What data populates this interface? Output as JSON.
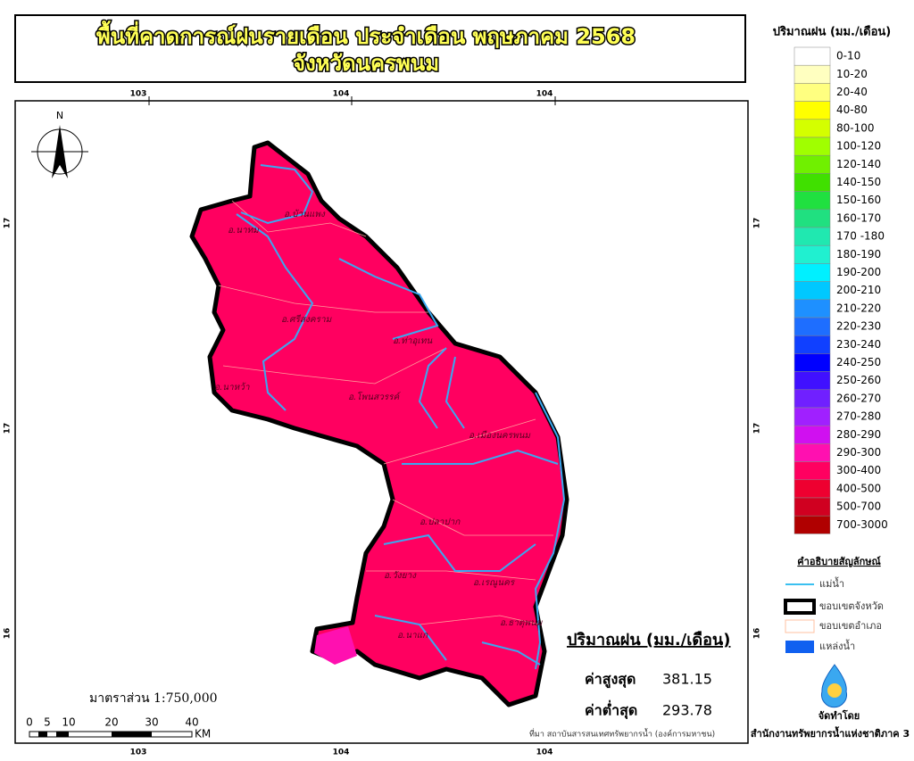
{
  "header": {
    "title_line1": "พื้นที่คาดการณ์ฝนรายเดือน ประจำเดือน พฤษภาคม 2568",
    "title_line2": "จังหวัดนครพนม"
  },
  "map": {
    "north": "N",
    "top_ticks": [
      "103",
      "104",
      "104"
    ],
    "bottom_ticks": [
      "103",
      "104",
      "104"
    ],
    "left_ticks": [
      "17",
      "17",
      "16"
    ],
    "right_ticks": [
      "17",
      "17",
      "16"
    ],
    "districts": [
      "อ.บ้านแพง",
      "อ.นาทม",
      "อ.ศรีสงคราม",
      "อ.ท่าอุเทน",
      "อ.นาหว้า",
      "อ.โพนสวรรค์",
      "อ.เมืองนครพนม",
      "อ.ปลาปาก",
      "อ.วังยาง",
      "อ.เรณูนคร",
      "อ.ธาตุพนม",
      "อ.นาแก"
    ]
  },
  "legend": {
    "title": "ปริมาณฝน (มม./เดือน)",
    "items": [
      {
        "label": "0-10",
        "color": "#ffffff"
      },
      {
        "label": "10-20",
        "color": "#ffffc0"
      },
      {
        "label": "20-40",
        "color": "#ffff80"
      },
      {
        "label": "40-80",
        "color": "#ffff00"
      },
      {
        "label": "80-100",
        "color": "#d4ff00"
      },
      {
        "label": "100-120",
        "color": "#a0ff00"
      },
      {
        "label": "120-140",
        "color": "#70f000"
      },
      {
        "label": "140-150",
        "color": "#40e000"
      },
      {
        "label": "150-160",
        "color": "#20e040"
      },
      {
        "label": "160-170",
        "color": "#20e080"
      },
      {
        "label": "170 -180",
        "color": "#20e8b0"
      },
      {
        "label": "180-190",
        "color": "#20f0d0"
      },
      {
        "label": "190-200",
        "color": "#00f0ff"
      },
      {
        "label": "200-210",
        "color": "#00c8ff"
      },
      {
        "label": "210-220",
        "color": "#1e90ff"
      },
      {
        "label": "220-230",
        "color": "#1e6eff"
      },
      {
        "label": "230-240",
        "color": "#1040ff"
      },
      {
        "label": "240-250",
        "color": "#0000ff"
      },
      {
        "label": "250-260",
        "color": "#4010ff"
      },
      {
        "label": "260-270",
        "color": "#7020ff"
      },
      {
        "label": "270-280",
        "color": "#a020ff"
      },
      {
        "label": "280-290",
        "color": "#d010f0"
      },
      {
        "label": "290-300",
        "color": "#ff10b0"
      },
      {
        "label": "300-400",
        "color": "#ff0060"
      },
      {
        "label": "400-500",
        "color": "#ee0030"
      },
      {
        "label": "500-700",
        "color": "#d00020"
      },
      {
        "label": "700-3000",
        "color": "#b00000"
      }
    ]
  },
  "symbols": {
    "title": "คำอธิบายสัญลักษณ์",
    "items": [
      "แม่น้ำ",
      "ขอบเขตจังหวัด",
      "ขอบเขตอำเภอ",
      "แหล่งน้ำ"
    ]
  },
  "stats": {
    "title": "ปริมาณฝน (มม./เดือน)",
    "max_label": "ค่าสูงสุด",
    "max_value": "381.15",
    "min_label": "ค่าต่ำสุด",
    "min_value": "293.78"
  },
  "scale": {
    "text": "มาตราส่วน 1:750,000",
    "ticks": [
      "0",
      "5",
      "10",
      "20",
      "30",
      "40"
    ],
    "unit": "KM"
  },
  "footer": {
    "source": "ที่มา  สถาบันสารสนเทศทรัพยากรน้ำ (องค์การมหาชน)",
    "made_by": "จัดทำโดย",
    "agency": "สำนักงานทรัพยากรน้ำแห่งชาติภาค 3"
  }
}
